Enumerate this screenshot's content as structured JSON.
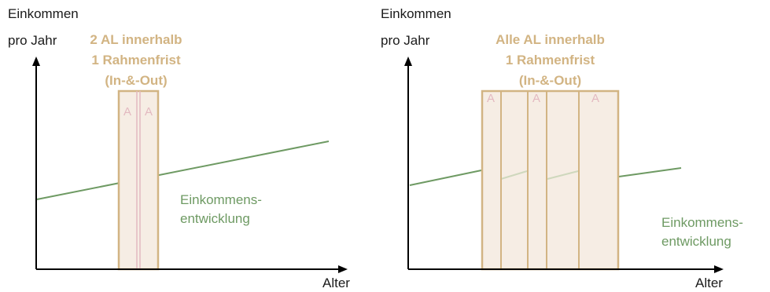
{
  "left": {
    "y_label_line1": "Einkommen",
    "y_label_line2": "pro Jahr",
    "x_label": "Alter",
    "title_line1": "2 AL innerhalb",
    "title_line2": "1 Rahmenfrist",
    "title_line3": "(In-&-Out)",
    "marker_a1": "A",
    "marker_a2": "A",
    "curve_label_line1": "Einkommens-",
    "curve_label_line2": "entwicklung"
  },
  "right": {
    "y_label_line1": "Einkommen",
    "y_label_line2": "pro Jahr",
    "x_label": "Alter",
    "title_line1": "Alle AL innerhalb",
    "title_line2": "1 Rahmenfrist",
    "title_line3": "(In-&-Out)",
    "marker_a1": "A",
    "marker_a2": "A",
    "marker_a3": "A",
    "curve_label_line1": "Einkommens-",
    "curve_label_line2": "entwicklung"
  },
  "colors": {
    "income_line": "#6e9a63",
    "period_fill": "#f6ede4",
    "period_border": "#d2b483",
    "title": "#d2b483",
    "marker": "#e3b9c0",
    "axis": "#000000"
  }
}
